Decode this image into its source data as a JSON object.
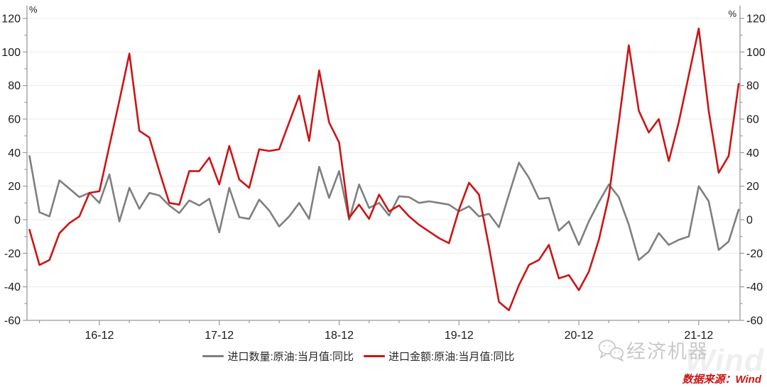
{
  "chart_data": {
    "type": "line",
    "title": "",
    "y_unit": "%",
    "ylim": [
      -60,
      120
    ],
    "y_major_step": 20,
    "y_minor_step": 10,
    "grid": "horizontal",
    "legend_position": "bottom-center",
    "x": [
      "16-05",
      "16-06",
      "16-07",
      "16-08",
      "16-09",
      "16-10",
      "16-11",
      "16-12",
      "17-01",
      "17-02",
      "17-03",
      "17-04",
      "17-05",
      "17-06",
      "17-07",
      "17-08",
      "17-09",
      "17-10",
      "17-11",
      "17-12",
      "18-01",
      "18-02",
      "18-03",
      "18-04",
      "18-05",
      "18-06",
      "18-07",
      "18-08",
      "18-09",
      "18-10",
      "18-11",
      "18-12",
      "19-01",
      "19-02",
      "19-03",
      "19-04",
      "19-05",
      "19-06",
      "19-07",
      "19-08",
      "19-09",
      "19-10",
      "19-11",
      "19-12",
      "20-01",
      "20-02",
      "20-03",
      "20-04",
      "20-05",
      "20-06",
      "20-07",
      "20-08",
      "20-09",
      "20-10",
      "20-11",
      "20-12",
      "21-01",
      "21-02",
      "21-03",
      "21-04",
      "21-05",
      "21-06",
      "21-07",
      "21-08",
      "21-09",
      "21-10",
      "21-11",
      "21-12",
      "22-01",
      "22-02",
      "22-03",
      "22-04"
    ],
    "x_ticks": [
      "16-12",
      "17-12",
      "18-12",
      "19-12",
      "20-12",
      "21-12"
    ],
    "series": [
      {
        "name": "进口数量:原油:当月值:同比",
        "color": "#7f7f7f",
        "values": [
          38,
          4.5,
          2,
          23.5,
          18.5,
          13.5,
          16,
          10,
          27,
          -1,
          19,
          6.5,
          16,
          14.5,
          8.5,
          4,
          11.5,
          8.5,
          12.5,
          -7.5,
          19,
          1.5,
          0.5,
          12,
          5.5,
          -4,
          2,
          10,
          0.5,
          31.5,
          13,
          29,
          0,
          21,
          7,
          10,
          2.5,
          14,
          13.5,
          10,
          11,
          10,
          9,
          5,
          8,
          2,
          3.5,
          -4.5,
          15,
          34,
          25,
          12.5,
          13,
          -6.5,
          -1,
          -15,
          -1,
          10.5,
          21,
          13.5,
          -3,
          -24,
          -19,
          -8,
          -15,
          -12,
          -10,
          20,
          11,
          -18,
          -13,
          6
        ]
      },
      {
        "name": "进口金额:原油:当月值:同比",
        "color": "#cc1414",
        "values": [
          -6,
          -27,
          -24,
          -8,
          -2,
          2,
          16,
          17,
          44,
          71,
          99,
          53,
          49,
          29,
          10,
          9,
          29,
          29,
          37,
          21,
          44,
          24,
          19,
          42,
          41,
          42,
          58,
          74,
          47,
          89,
          58,
          46,
          1,
          9,
          0.5,
          15,
          5,
          8.5,
          2,
          -3,
          -7,
          -11,
          -14,
          6,
          22,
          15,
          -16,
          -49,
          -54,
          -39,
          -27,
          -24,
          -15,
          -35,
          -33,
          -42,
          -31,
          -12,
          14,
          58,
          104,
          65,
          52,
          60,
          35,
          58,
          86,
          114,
          65,
          28,
          38,
          81
        ]
      }
    ],
    "axis_color": "#9a9a9a",
    "grid_color": "#ececec",
    "label_color": "#1a1a1a"
  },
  "source": {
    "text": "数据来源：Wind",
    "color": "#cc1414"
  },
  "watermark": {
    "brand": "经济机器",
    "background_text": "Wind",
    "icon": "wechat-chat-bubbles-icon"
  }
}
